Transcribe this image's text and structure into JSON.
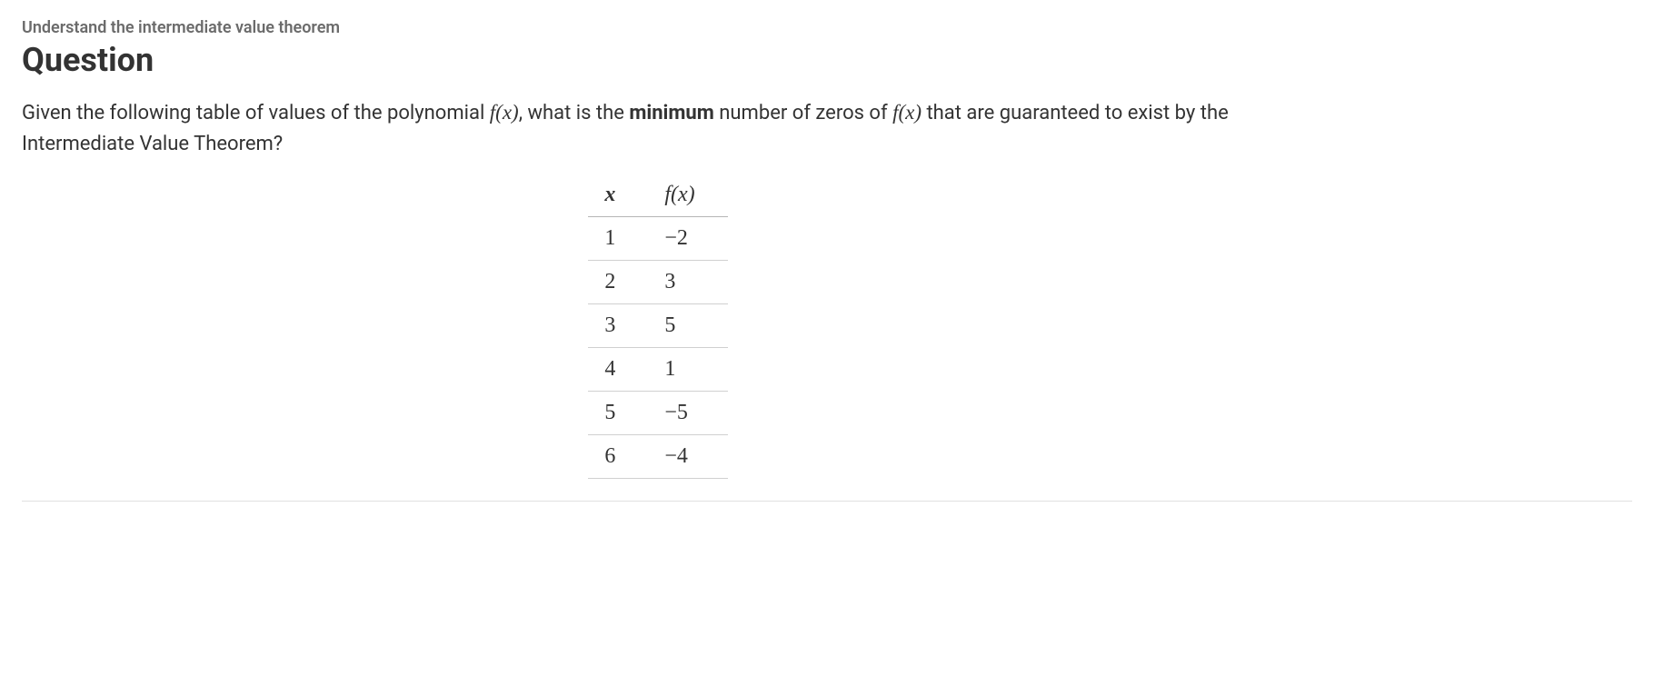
{
  "topic": "Understand the intermediate value theorem",
  "heading": "Question",
  "prompt": {
    "part1": "Given the following table of values of the polynomial ",
    "fn1": "f(x)",
    "part2": ", what is the ",
    "bold": "minimum",
    "part3": " number of zeros of ",
    "fn2": "f(x)",
    "part4": " that are guaranteed to exist by the Intermediate Value Theorem?"
  },
  "table": {
    "type": "table",
    "columns": [
      "x",
      "f(x)"
    ],
    "header_fontstyle": "italic",
    "header_fontfamily": "Times New Roman",
    "header_fontsize": 24,
    "cell_fontsize": 24,
    "border_color": "#b5b5b5",
    "row_border_color": "#d0d0d0",
    "rows": [
      {
        "x": "1",
        "fx": "−2"
      },
      {
        "x": "2",
        "fx": "3"
      },
      {
        "x": "3",
        "fx": "5"
      },
      {
        "x": "4",
        "fx": "1"
      },
      {
        "x": "5",
        "fx": "−5"
      },
      {
        "x": "6",
        "fx": "−4"
      }
    ]
  },
  "colors": {
    "topic_text": "#6b6b6b",
    "body_text": "#333333",
    "background": "#ffffff"
  }
}
